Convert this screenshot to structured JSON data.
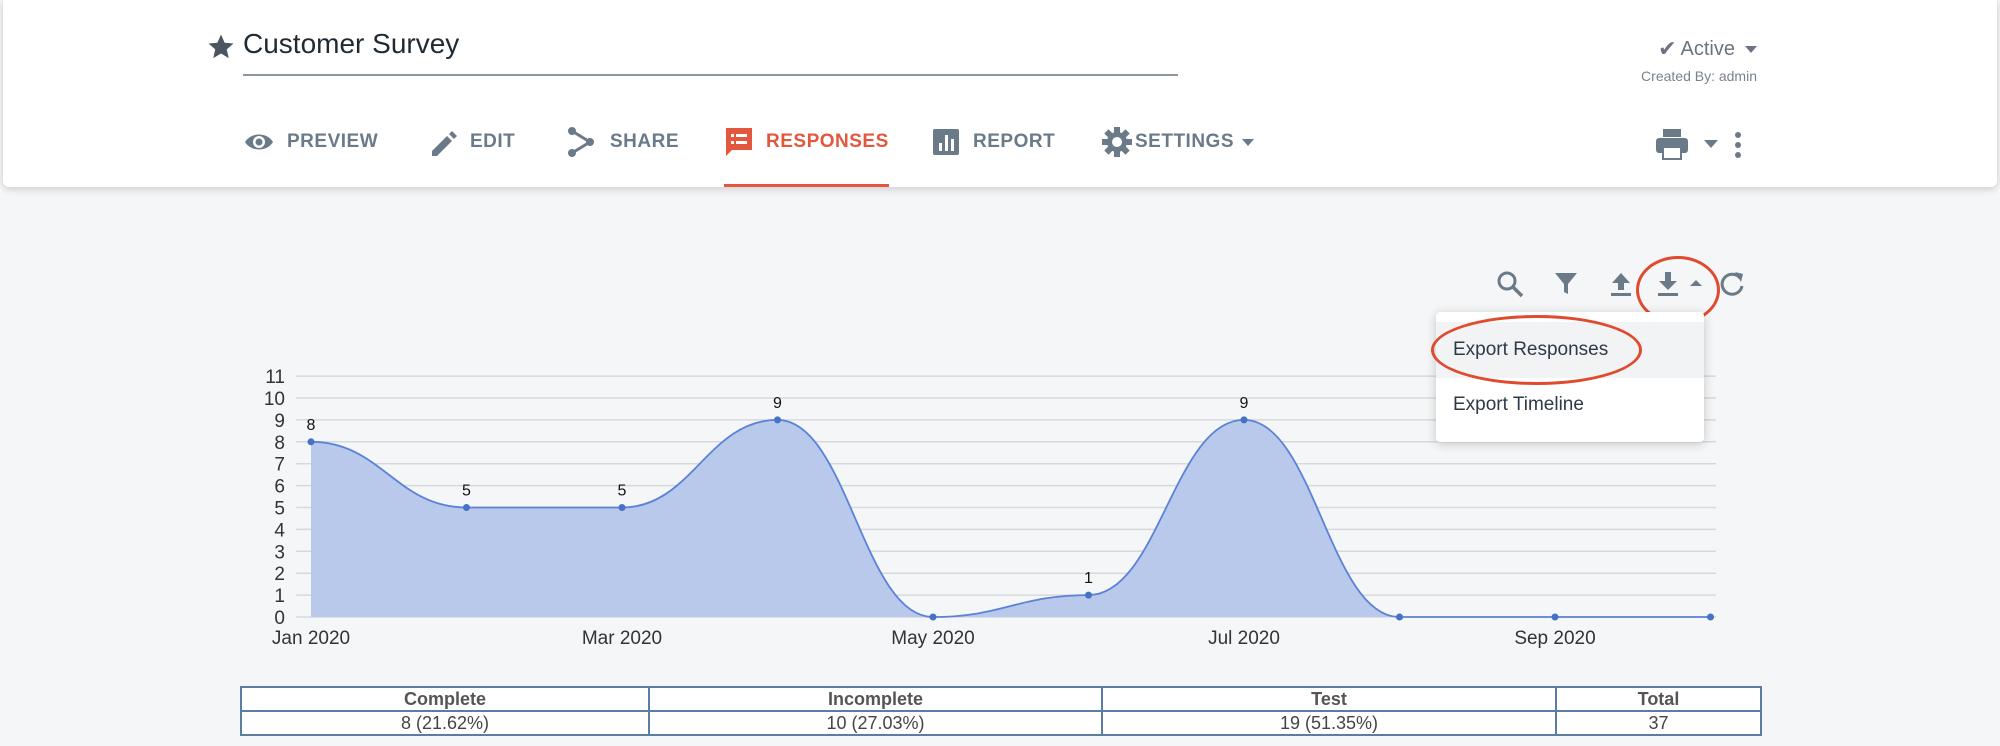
{
  "survey": {
    "title": "Customer Survey",
    "status": "Active",
    "created_by": "Created By: admin"
  },
  "nav": {
    "preview": "PREVIEW",
    "edit": "EDIT",
    "share": "SHARE",
    "responses": "RESPONSES",
    "report": "REPORT",
    "settings": "SETTINGS",
    "active_tab": "responses",
    "accent_color": "#e2573d"
  },
  "toolbar": {
    "icons": [
      "search-icon",
      "filter-icon",
      "upload-icon",
      "download-icon",
      "refresh-icon"
    ]
  },
  "export_menu": {
    "items": [
      "Export Responses",
      "Export Timeline"
    ]
  },
  "chart_data": {
    "type": "area",
    "x": [
      "2020-01",
      "2020-02",
      "2020-03",
      "2020-04",
      "2020-05",
      "2020-06",
      "2020-07",
      "2020-08",
      "2020-09",
      "2020-10"
    ],
    "values": [
      8,
      5,
      5,
      9,
      0,
      1,
      9,
      0,
      0,
      0
    ],
    "point_labels": [
      "8",
      "5",
      "5",
      "9",
      "",
      "1",
      "9",
      "",
      "",
      ""
    ],
    "x_tick_labels": [
      "Jan 2020",
      "",
      "Mar 2020",
      "",
      "May 2020",
      "",
      "Jul 2020",
      "",
      "Sep 2020",
      ""
    ],
    "y_ticks": [
      "0",
      "1",
      "2",
      "3",
      "4",
      "5",
      "6",
      "7",
      "8",
      "9",
      "10",
      "11"
    ],
    "ylim": [
      0,
      11
    ],
    "grid": true,
    "fill_color": "#b9c9ec",
    "line_color": "#5b82d6"
  },
  "summary": {
    "headers": [
      "Complete",
      "Incomplete",
      "Test",
      "Total"
    ],
    "values": [
      "8 (21.62%)",
      "10 (27.03%)",
      "19 (51.35%)",
      "37"
    ]
  }
}
